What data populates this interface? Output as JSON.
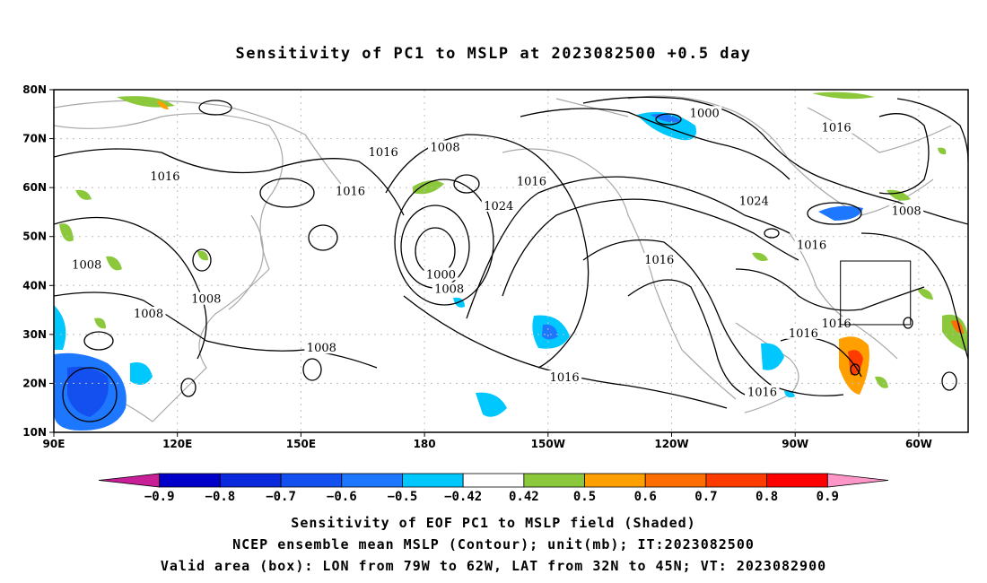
{
  "title": "Sensitivity of PC1 to MSLP at 2023082500 +0.5 day",
  "map": {
    "lon_labels": [
      "90E",
      "120E",
      "150E",
      "180",
      "150W",
      "120W",
      "90W",
      "60W"
    ],
    "lat_labels": [
      "80N",
      "70N",
      "60N",
      "50N",
      "40N",
      "30N",
      "20N",
      "10N"
    ],
    "contour_labels": [
      {
        "text": "1016",
        "lon": 117,
        "lat": 62
      },
      {
        "text": "1016",
        "lon": 170,
        "lat": 67
      },
      {
        "text": "1016",
        "lon": 162,
        "lat": 59
      },
      {
        "text": "1008",
        "lon": 185,
        "lat": 68
      },
      {
        "text": "1008",
        "lon": 98,
        "lat": 44
      },
      {
        "text": "1008",
        "lon": 127,
        "lat": 37
      },
      {
        "text": "1008",
        "lon": 113,
        "lat": 34
      },
      {
        "text": "1008",
        "lon": 155,
        "lat": 27
      },
      {
        "text": "1000",
        "lon": 184,
        "lat": 42
      },
      {
        "text": "1008",
        "lon": 186,
        "lat": 39
      },
      {
        "text": "1016",
        "lon": 206,
        "lat": 61
      },
      {
        "text": "1024",
        "lon": 198,
        "lat": 56
      },
      {
        "text": "1000",
        "lon": 248,
        "lat": 75
      },
      {
        "text": "1016",
        "lon": 280,
        "lat": 72
      },
      {
        "text": "1024",
        "lon": 260,
        "lat": 57
      },
      {
        "text": "1008",
        "lon": 297,
        "lat": 55
      },
      {
        "text": "1016",
        "lon": 274,
        "lat": 48
      },
      {
        "text": "1016",
        "lon": 237,
        "lat": 45
      },
      {
        "text": "1016",
        "lon": 272,
        "lat": 30
      },
      {
        "text": "1016",
        "lon": 280,
        "lat": 32
      },
      {
        "text": "1016",
        "lon": 214,
        "lat": 21
      },
      {
        "text": "1016",
        "lon": 262,
        "lat": 18
      }
    ],
    "valid_box": {
      "lon_min": 281,
      "lon_max": 298,
      "lat_min": 32,
      "lat_max": 45
    }
  },
  "colorbar": {
    "labels": [
      "-0.9",
      "-0.8",
      "-0.7",
      "-0.6",
      "-0.5",
      "-0.42",
      "0.42",
      "0.5",
      "0.6",
      "0.7",
      "0.8",
      "0.9"
    ],
    "colors": [
      "#c81e96",
      "#0000c8",
      "#0a28dc",
      "#1450f0",
      "#1e78ff",
      "#00c8ff",
      "#ffffff",
      "#8cc83c",
      "#ffa000",
      "#ff6e00",
      "#ff3c00",
      "#ff0000",
      "#ff96c8"
    ]
  },
  "caption": {
    "line1": "Sensitivity of EOF PC1 to MSLP field (Shaded)",
    "line2": "NCEP ensemble mean MSLP (Contour); unit(mb); IT:2023082500",
    "line3": "Valid area (box): LON from 79W to 62W, LAT from 32N to 45N; VT: 2023082900"
  }
}
